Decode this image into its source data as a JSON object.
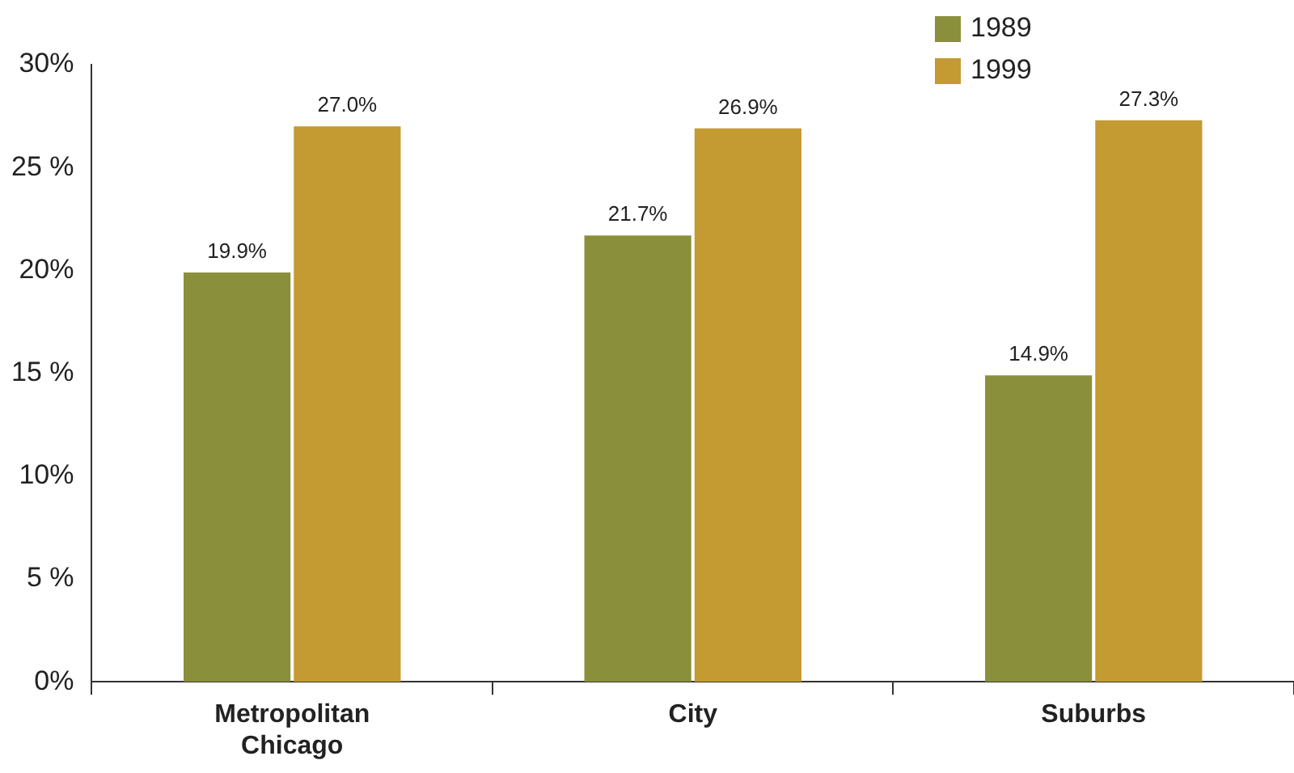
{
  "chart_data": {
    "type": "bar",
    "categories": [
      "Metropolitan Chicago",
      "City",
      "Suburbs"
    ],
    "series": [
      {
        "name": "1989",
        "color": "#8a8f3b",
        "values": [
          19.9,
          21.7,
          14.9
        ],
        "value_labels": [
          "19.9%",
          "21.7%",
          "14.9%"
        ]
      },
      {
        "name": "1999",
        "color": "#c49a32",
        "values": [
          27.0,
          26.9,
          27.3
        ],
        "value_labels": [
          "27.0%",
          "26.9%",
          "27.3%"
        ]
      }
    ],
    "ylim": [
      0,
      30
    ],
    "yticks": [
      {
        "value": 0,
        "label": "0%"
      },
      {
        "value": 5,
        "label": "5 %"
      },
      {
        "value": 10,
        "label": "10%"
      },
      {
        "value": 15,
        "label": "15 %"
      },
      {
        "value": 20,
        "label": "20%"
      },
      {
        "value": 25,
        "label": "25 %"
      },
      {
        "value": 30,
        "label": "30%"
      }
    ],
    "grid": false,
    "legend": "top right"
  }
}
